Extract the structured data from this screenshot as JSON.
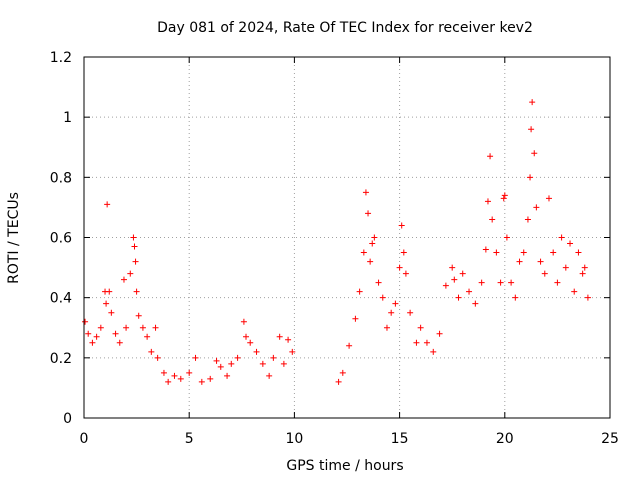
{
  "chart_data": {
    "type": "scatter",
    "title": "Day 081 of 2024, Rate Of TEC Index for receiver kev2",
    "xlabel": "GPS time / hours",
    "ylabel": "ROTI / TECUs",
    "xlim": [
      0,
      25
    ],
    "ylim": [
      0,
      1.2
    ],
    "x_ticks": [
      0,
      5,
      10,
      15,
      20,
      25
    ],
    "y_ticks": [
      0,
      0.2,
      0.4,
      0.6,
      0.8,
      1,
      1.2
    ],
    "x_tick_labels": [
      "0",
      "5",
      "10",
      "15",
      "20",
      "25"
    ],
    "y_tick_labels": [
      "0",
      "0.2",
      "0.4",
      "0.6",
      "0.8",
      "1",
      "1.2"
    ],
    "grid": true,
    "marker": "+",
    "color": "#ff0000",
    "data_gap_hours": [
      10.0,
      12.0
    ],
    "series": [
      {
        "name": "ROTI",
        "points": [
          [
            0.05,
            0.32
          ],
          [
            0.2,
            0.28
          ],
          [
            0.4,
            0.25
          ],
          [
            0.6,
            0.27
          ],
          [
            0.8,
            0.3
          ],
          [
            1.0,
            0.42
          ],
          [
            1.05,
            0.38
          ],
          [
            1.1,
            0.71
          ],
          [
            1.2,
            0.42
          ],
          [
            1.3,
            0.35
          ],
          [
            1.5,
            0.28
          ],
          [
            1.7,
            0.25
          ],
          [
            1.9,
            0.46
          ],
          [
            2.0,
            0.3
          ],
          [
            2.2,
            0.48
          ],
          [
            2.35,
            0.6
          ],
          [
            2.4,
            0.57
          ],
          [
            2.45,
            0.52
          ],
          [
            2.5,
            0.42
          ],
          [
            2.6,
            0.34
          ],
          [
            2.8,
            0.3
          ],
          [
            3.0,
            0.27
          ],
          [
            3.2,
            0.22
          ],
          [
            3.4,
            0.3
          ],
          [
            3.5,
            0.2
          ],
          [
            3.8,
            0.15
          ],
          [
            4.0,
            0.12
          ],
          [
            4.3,
            0.14
          ],
          [
            4.6,
            0.13
          ],
          [
            5.0,
            0.15
          ],
          [
            5.3,
            0.2
          ],
          [
            5.6,
            0.12
          ],
          [
            6.0,
            0.13
          ],
          [
            6.3,
            0.19
          ],
          [
            6.5,
            0.17
          ],
          [
            6.8,
            0.14
          ],
          [
            7.0,
            0.18
          ],
          [
            7.3,
            0.2
          ],
          [
            7.6,
            0.32
          ],
          [
            7.7,
            0.27
          ],
          [
            7.9,
            0.25
          ],
          [
            8.2,
            0.22
          ],
          [
            8.5,
            0.18
          ],
          [
            8.8,
            0.14
          ],
          [
            9.0,
            0.2
          ],
          [
            9.3,
            0.27
          ],
          [
            9.5,
            0.18
          ],
          [
            9.7,
            0.26
          ],
          [
            9.9,
            0.22
          ],
          [
            12.1,
            0.12
          ],
          [
            12.3,
            0.15
          ],
          [
            12.6,
            0.24
          ],
          [
            12.9,
            0.33
          ],
          [
            13.1,
            0.42
          ],
          [
            13.3,
            0.55
          ],
          [
            13.4,
            0.75
          ],
          [
            13.5,
            0.68
          ],
          [
            13.6,
            0.52
          ],
          [
            13.7,
            0.58
          ],
          [
            13.8,
            0.6
          ],
          [
            14.0,
            0.45
          ],
          [
            14.2,
            0.4
          ],
          [
            14.4,
            0.3
          ],
          [
            14.6,
            0.35
          ],
          [
            14.8,
            0.38
          ],
          [
            15.0,
            0.5
          ],
          [
            15.1,
            0.64
          ],
          [
            15.2,
            0.55
          ],
          [
            15.3,
            0.48
          ],
          [
            15.5,
            0.35
          ],
          [
            15.8,
            0.25
          ],
          [
            16.0,
            0.3
          ],
          [
            16.3,
            0.25
          ],
          [
            16.6,
            0.22
          ],
          [
            16.9,
            0.28
          ],
          [
            17.2,
            0.44
          ],
          [
            17.5,
            0.5
          ],
          [
            17.6,
            0.46
          ],
          [
            17.8,
            0.4
          ],
          [
            18.0,
            0.48
          ],
          [
            18.3,
            0.42
          ],
          [
            18.6,
            0.38
          ],
          [
            18.9,
            0.45
          ],
          [
            19.1,
            0.56
          ],
          [
            19.2,
            0.72
          ],
          [
            19.3,
            0.87
          ],
          [
            19.4,
            0.66
          ],
          [
            19.6,
            0.55
          ],
          [
            19.8,
            0.45
          ],
          [
            19.95,
            0.73
          ],
          [
            20.0,
            0.74
          ],
          [
            20.1,
            0.6
          ],
          [
            20.3,
            0.45
          ],
          [
            20.5,
            0.4
          ],
          [
            20.7,
            0.52
          ],
          [
            20.9,
            0.55
          ],
          [
            21.1,
            0.66
          ],
          [
            21.2,
            0.8
          ],
          [
            21.25,
            0.96
          ],
          [
            21.3,
            1.05
          ],
          [
            21.4,
            0.88
          ],
          [
            21.5,
            0.7
          ],
          [
            21.7,
            0.52
          ],
          [
            21.9,
            0.48
          ],
          [
            22.1,
            0.73
          ],
          [
            22.3,
            0.55
          ],
          [
            22.5,
            0.45
          ],
          [
            22.7,
            0.6
          ],
          [
            22.9,
            0.5
          ],
          [
            23.1,
            0.58
          ],
          [
            23.3,
            0.42
          ],
          [
            23.5,
            0.55
          ],
          [
            23.7,
            0.48
          ],
          [
            23.8,
            0.5
          ],
          [
            23.95,
            0.4
          ]
        ]
      }
    ]
  }
}
